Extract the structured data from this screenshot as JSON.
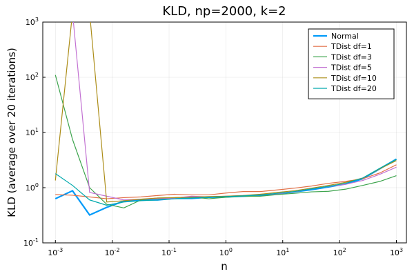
{
  "chart_data": {
    "type": "line",
    "title": "KLD, np=2000, k=2",
    "xlabel": "n",
    "ylabel": "KLD (average over 20 iterations)",
    "xscale": "log",
    "yscale": "log",
    "xlim": [
      0.0006,
      1500
    ],
    "ylim": [
      0.1,
      1000
    ],
    "grid": true,
    "legend_position": "top-right",
    "x_ticks": [
      {
        "value": 0.001,
        "base": "10",
        "exp": "-3"
      },
      {
        "value": 0.01,
        "base": "10",
        "exp": "-2"
      },
      {
        "value": 0.1,
        "base": "10",
        "exp": "-1"
      },
      {
        "value": 1,
        "base": "10",
        "exp": "0"
      },
      {
        "value": 10,
        "base": "10",
        "exp": "1"
      },
      {
        "value": 100,
        "base": "10",
        "exp": "2"
      },
      {
        "value": 1000,
        "base": "10",
        "exp": "3"
      }
    ],
    "y_ticks": [
      {
        "value": 0.1,
        "base": "10",
        "exp": "-1"
      },
      {
        "value": 1,
        "base": "10",
        "exp": "0"
      },
      {
        "value": 10,
        "base": "10",
        "exp": "1"
      },
      {
        "value": 100,
        "base": "10",
        "exp": "2"
      },
      {
        "value": 1000,
        "base": "10",
        "exp": "3"
      }
    ],
    "x": [
      0.001,
      0.002,
      0.004,
      0.008,
      0.016,
      0.032,
      0.0625,
      0.125,
      0.25,
      0.5,
      1,
      2,
      4,
      8,
      16,
      32,
      64,
      128,
      256,
      512,
      1000
    ],
    "series": [
      {
        "name": "Normal",
        "color": "#009af9",
        "width": 2.2,
        "values": [
          0.63,
          0.88,
          0.32,
          0.44,
          0.57,
          0.6,
          0.6,
          0.64,
          0.64,
          0.67,
          0.68,
          0.7,
          0.72,
          0.77,
          0.84,
          0.92,
          1.03,
          1.17,
          1.45,
          2.2,
          3.3
        ]
      },
      {
        "name": "TDist df=1",
        "color": "#e26f46",
        "width": 1.2,
        "values": [
          0.75,
          0.73,
          0.68,
          0.63,
          0.66,
          0.68,
          0.72,
          0.76,
          0.74,
          0.74,
          0.8,
          0.85,
          0.85,
          0.91,
          0.98,
          1.07,
          1.2,
          1.3,
          1.45,
          1.85,
          2.6
        ]
      },
      {
        "name": "TDist df=3",
        "color": "#3da44d",
        "width": 1.2,
        "values": [
          110,
          7.5,
          1.0,
          0.5,
          0.43,
          0.6,
          0.65,
          0.66,
          0.68,
          0.63,
          0.67,
          0.7,
          0.7,
          0.75,
          0.79,
          0.84,
          0.86,
          0.94,
          1.1,
          1.3,
          1.65
        ]
      },
      {
        "name": "TDist df=5",
        "color": "#c271d2",
        "width": 1.2,
        "values": [
          1500,
          1500,
          0.82,
          0.7,
          0.6,
          0.62,
          0.63,
          0.65,
          0.7,
          0.68,
          0.7,
          0.72,
          0.74,
          0.78,
          0.84,
          0.95,
          1.05,
          1.15,
          1.35,
          1.75,
          2.35
        ]
      },
      {
        "name": "TDist df=10",
        "color": "#ac8d18",
        "width": 1.2,
        "values": [
          1.35,
          1500,
          1500,
          0.55,
          0.58,
          0.62,
          0.65,
          0.66,
          0.67,
          0.69,
          0.7,
          0.72,
          0.76,
          0.82,
          0.88,
          0.98,
          1.1,
          1.25,
          1.5,
          2.2,
          3.1
        ]
      },
      {
        "name": "TDist df=20",
        "color": "#00a9ad",
        "width": 1.2,
        "values": [
          1.8,
          1.1,
          0.6,
          0.48,
          0.55,
          0.58,
          0.6,
          0.63,
          0.65,
          0.67,
          0.69,
          0.71,
          0.74,
          0.79,
          0.85,
          0.95,
          1.06,
          1.2,
          1.5,
          2.25,
          3.25
        ]
      }
    ]
  }
}
